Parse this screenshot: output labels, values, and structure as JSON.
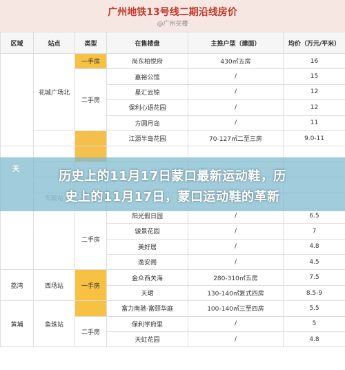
{
  "header": {
    "title": "广州地铁13号线二期沿线房价",
    "subtitle": "@广州买楼"
  },
  "table": {
    "cols": [
      "区域",
      "站点",
      "类型",
      "在售楼盘",
      "主推户型（建面）",
      "均价（万元/平米）"
    ],
    "groups": {
      "g1": {
        "station": "花城广场北",
        "type_a": "一手房",
        "type_b": "二手房"
      },
      "g2": {
        "region_partial": "天",
        "station_partial": "车陂站",
        "type_b": "二手房"
      },
      "g3": {
        "region": "荔湾",
        "station": "西场站",
        "type_a": "一手房"
      },
      "g4": {
        "region": "黄埔",
        "station": "鱼珠站",
        "type_b": "二手房"
      }
    },
    "rows": [
      [
        "尚东柏悦府",
        "430㎡五房",
        "16"
      ],
      [
        "嘉裕公馆",
        "/",
        "15"
      ],
      [
        "星汇云锦",
        "/",
        "12"
      ],
      [
        "保利心语花园",
        "/",
        "12"
      ],
      [
        "方圆月岛",
        "/",
        "11"
      ],
      [
        "江源半岛花园",
        "70-127㎡二至三房",
        "9.0-11"
      ],
      [
        "",
        "",
        ""
      ],
      [
        "",
        "",
        ""
      ],
      [
        "",
        "",
        ""
      ],
      [
        "",
        "",
        ""
      ],
      [
        "阳光假日园",
        "/",
        "6.5"
      ],
      [
        "骏景花园",
        "/",
        "7"
      ],
      [
        "美好居",
        "/",
        "4.8"
      ],
      [
        "逸安阁",
        "/",
        "4.5"
      ],
      [
        "金众西关海",
        "280-310㎡五房",
        "7.5"
      ],
      [
        "天珺",
        "130-140㎡复式四房",
        "8.5-9"
      ],
      [
        "富力南驰·富颐华庭",
        "100-140㎡三至四房",
        "5.5"
      ],
      [
        "保利学府里",
        "/",
        "5"
      ],
      [
        "天虹花园",
        "/",
        "4.8"
      ]
    ]
  },
  "banner": {
    "line1": "历史上的11月17日蒙口最新运动鞋，历",
    "line2": "史上的11月17日，蒙口运动鞋的革新"
  }
}
